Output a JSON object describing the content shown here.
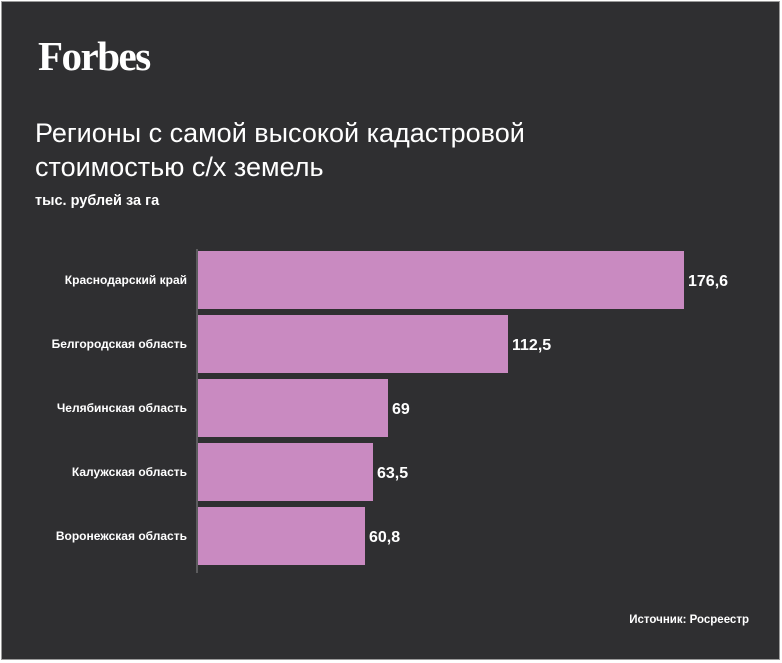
{
  "logo": "Forbes",
  "title": "Регионы с самой высокой кадастровой стоимостью с/х земель",
  "source": "Источник: Росреестр",
  "colors": {
    "background": "#2f2f31",
    "bar": "#c98ac1",
    "text": "#ffffff",
    "axis": "#8a8a8a"
  },
  "chart_data": {
    "type": "bar",
    "orientation": "horizontal",
    "title": "Регионы с самой высокой кадастровой стоимостью с/х земель",
    "unit_label": "тыс. рублей за га",
    "categories": [
      "Краснодарский край",
      "Белгородская область",
      "Челябинская область",
      "Калужская область",
      "Воронежская область"
    ],
    "values": [
      176.6,
      112.5,
      69,
      63.5,
      60.8
    ],
    "value_labels": [
      "176,6",
      "112,5",
      "69",
      "63,5",
      "60,8"
    ],
    "xlim": [
      0,
      176.6
    ],
    "grid": false,
    "legend": "none"
  }
}
